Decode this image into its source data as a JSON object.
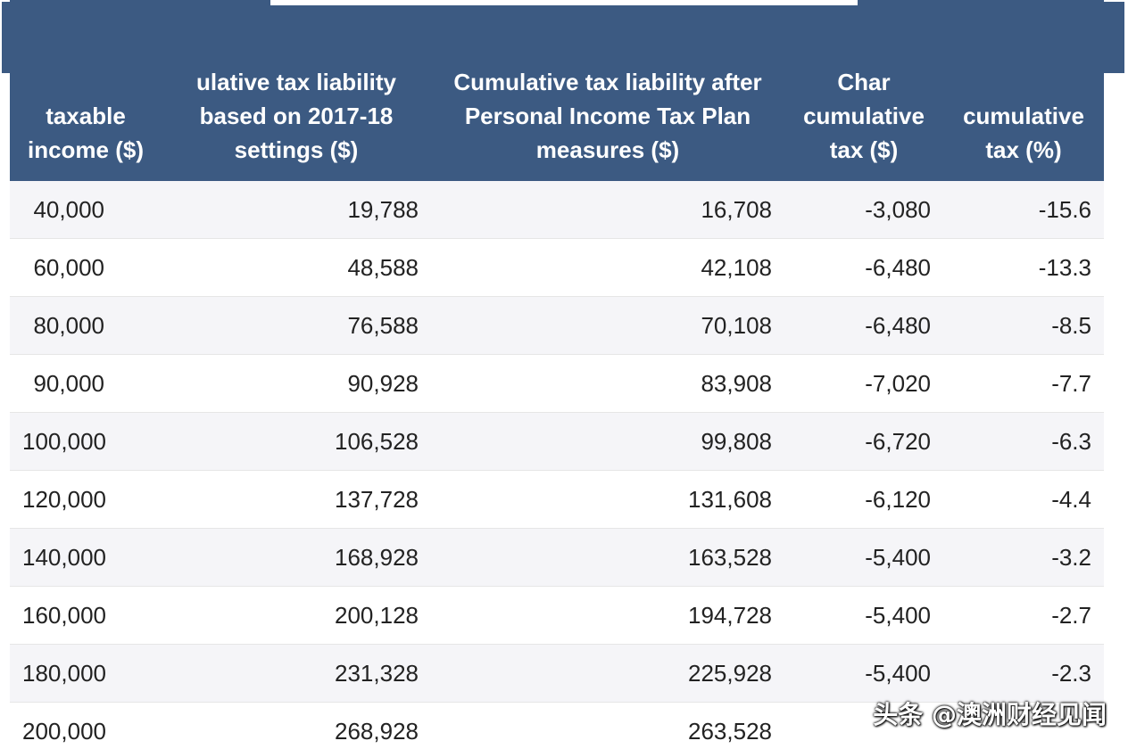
{
  "table": {
    "headers": [
      "taxable income ($)",
      "ulative tax liability based on 2017-18 settings ($)",
      "Cumulative tax liability after Personal Income Tax Plan measures ($)",
      "Char cumulative tax ($)",
      "cumulative tax (%)"
    ],
    "rows": [
      [
        "40,000",
        "19,788",
        "16,708",
        "-3,080",
        "-15.6"
      ],
      [
        "60,000",
        "48,588",
        "42,108",
        "-6,480",
        "-13.3"
      ],
      [
        "80,000",
        "76,588",
        "70,108",
        "-6,480",
        "-8.5"
      ],
      [
        "90,000",
        "90,928",
        "83,908",
        "-7,020",
        "-7.7"
      ],
      [
        "100,000",
        "106,528",
        "99,808",
        "-6,720",
        "-6.3"
      ],
      [
        "120,000",
        "137,728",
        "131,608",
        "-6,120",
        "-4.4"
      ],
      [
        "140,000",
        "168,928",
        "163,528",
        "-5,400",
        "-3.2"
      ],
      [
        "160,000",
        "200,128",
        "194,728",
        "-5,400",
        "-2.7"
      ],
      [
        "180,000",
        "231,328",
        "225,928",
        "-5,400",
        "-2.3"
      ],
      [
        "200,000",
        "268,928",
        "263,528",
        "",
        ""
      ]
    ]
  },
  "watermark": "头条 @澳洲财经见闻"
}
